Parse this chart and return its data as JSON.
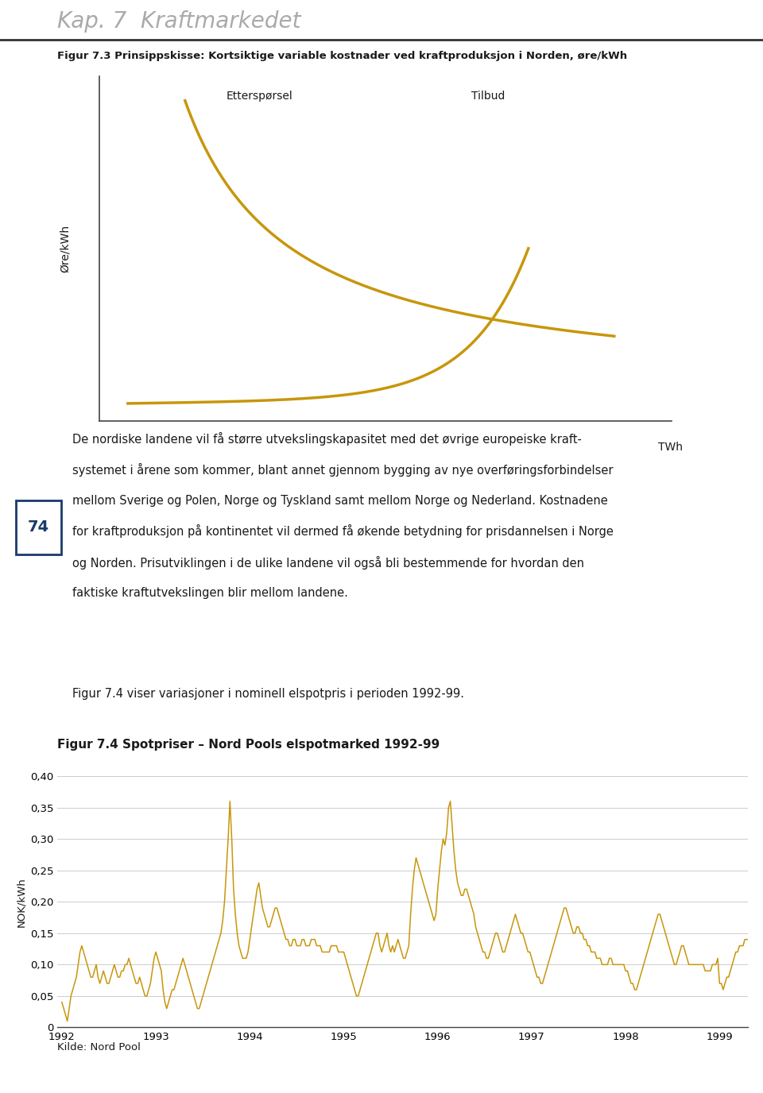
{
  "page_title": "Kap. 7  Kraftmarkedet",
  "fig3_title": "Figur 7.3 Prinsippskisse: Kortsiktige variable kostnader ved kraftproduksjon i Norden, øre/kWh",
  "fig3_xlabel": "TWh",
  "fig3_ylabel": "Øre/kWh",
  "fig3_label_demand": "Etterspørsel",
  "fig3_label_supply": "Tilbud",
  "curve_color": "#C8960C",
  "fig4_title": "Figur 7.4 Spotpriser – Nord Pools elspotmarked 1992-99",
  "fig4_ylabel": "NOK/kWh",
  "fig4_xlabel_note": "Kilde: Nord Pool",
  "fig4_ylim": [
    0,
    0.4
  ],
  "fig4_yticks": [
    0,
    0.05,
    0.1,
    0.15,
    0.2,
    0.25,
    0.3,
    0.35,
    0.4
  ],
  "fig4_ytick_labels": [
    "0",
    "0,05",
    "0,10",
    "0,15",
    "0,20",
    "0,25",
    "0,30",
    "0,35",
    "0,40"
  ],
  "page_number": "74",
  "body_text_lines": [
    "De nordiske landene vil få større utvekslingskapasitet med det øvrige europeiske kraft-",
    "systemet i årene som kommer, blant annet gjennom bygging av nye overføringsforbindelser",
    "mellom Sverige og Polen, Norge og Tyskland samt mellom Norge og Nederland. Kostnadene",
    "for kraftproduksjon på kontinentet vil dermed få økende betydning for prisdannelsen i Norge",
    "og Norden. Prisutviklingen i de ulike landene vil også bli bestemmende for hvordan den",
    "faktiske kraftutvekslingen blir mellom landene."
  ],
  "intro_text": "Figur 7.4 viser variasjoner i nominell elspotpris i perioden 1992-99.",
  "background_color": "#ffffff",
  "text_color": "#1a1a1a",
  "line_color": "#C8960C",
  "prices_1992": [
    0.04,
    0.03,
    0.02,
    0.01,
    0.03,
    0.05,
    0.06,
    0.07,
    0.08,
    0.1,
    0.12,
    0.13,
    0.12,
    0.11,
    0.1,
    0.09,
    0.08,
    0.08,
    0.09,
    0.1,
    0.08,
    0.07,
    0.08,
    0.09,
    0.08,
    0.07,
    0.07,
    0.08,
    0.09,
    0.1,
    0.09,
    0.08,
    0.08,
    0.09,
    0.09,
    0.1,
    0.1,
    0.11,
    0.1,
    0.09,
    0.08,
    0.07,
    0.07,
    0.08,
    0.07,
    0.06,
    0.05,
    0.05,
    0.06,
    0.07,
    0.09,
    0.11
  ],
  "prices_1993": [
    0.12,
    0.11,
    0.1,
    0.09,
    0.06,
    0.04,
    0.03,
    0.04,
    0.05,
    0.06,
    0.06,
    0.07,
    0.08,
    0.09,
    0.1,
    0.11,
    0.1,
    0.09,
    0.08,
    0.07,
    0.06,
    0.05,
    0.04,
    0.03,
    0.03,
    0.04,
    0.05,
    0.06,
    0.07,
    0.08,
    0.09,
    0.1,
    0.11,
    0.12,
    0.13,
    0.14,
    0.15,
    0.17,
    0.2,
    0.25,
    0.3,
    0.36,
    0.3,
    0.22,
    0.18,
    0.15,
    0.13,
    0.12,
    0.11,
    0.11,
    0.11,
    0.12
  ],
  "prices_1994": [
    0.14,
    0.16,
    0.18,
    0.2,
    0.22,
    0.23,
    0.21,
    0.19,
    0.18,
    0.17,
    0.16,
    0.16,
    0.17,
    0.18,
    0.19,
    0.19,
    0.18,
    0.17,
    0.16,
    0.15,
    0.14,
    0.14,
    0.13,
    0.13,
    0.14,
    0.14,
    0.13,
    0.13,
    0.13,
    0.14,
    0.14,
    0.13,
    0.13,
    0.13,
    0.14,
    0.14,
    0.14,
    0.13,
    0.13,
    0.13,
    0.12,
    0.12,
    0.12,
    0.12,
    0.12,
    0.13,
    0.13,
    0.13,
    0.13,
    0.12,
    0.12,
    0.12
  ],
  "prices_1995": [
    0.12,
    0.11,
    0.1,
    0.09,
    0.08,
    0.07,
    0.06,
    0.05,
    0.05,
    0.06,
    0.07,
    0.08,
    0.09,
    0.1,
    0.11,
    0.12,
    0.13,
    0.14,
    0.15,
    0.15,
    0.13,
    0.12,
    0.13,
    0.14,
    0.15,
    0.13,
    0.12,
    0.13,
    0.12,
    0.13,
    0.14,
    0.13,
    0.12,
    0.11,
    0.11,
    0.12,
    0.13,
    0.18,
    0.22,
    0.25,
    0.27,
    0.26,
    0.25,
    0.24,
    0.23,
    0.22,
    0.21,
    0.2,
    0.19,
    0.18,
    0.17,
    0.18
  ],
  "prices_1996": [
    0.22,
    0.25,
    0.28,
    0.3,
    0.29,
    0.31,
    0.35,
    0.36,
    0.32,
    0.28,
    0.25,
    0.23,
    0.22,
    0.21,
    0.21,
    0.22,
    0.22,
    0.21,
    0.2,
    0.19,
    0.18,
    0.16,
    0.15,
    0.14,
    0.13,
    0.12,
    0.12,
    0.11,
    0.11,
    0.12,
    0.13,
    0.14,
    0.15,
    0.15,
    0.14,
    0.13,
    0.12,
    0.12,
    0.13,
    0.14,
    0.15,
    0.16,
    0.17,
    0.18,
    0.17,
    0.16,
    0.15,
    0.15,
    0.14,
    0.13,
    0.12,
    0.12
  ],
  "prices_1997": [
    0.11,
    0.1,
    0.09,
    0.08,
    0.08,
    0.07,
    0.07,
    0.08,
    0.09,
    0.1,
    0.11,
    0.12,
    0.13,
    0.14,
    0.15,
    0.16,
    0.17,
    0.18,
    0.19,
    0.19,
    0.18,
    0.17,
    0.16,
    0.15,
    0.15,
    0.16,
    0.16,
    0.15,
    0.15,
    0.14,
    0.14,
    0.13,
    0.13,
    0.12,
    0.12,
    0.12,
    0.11,
    0.11,
    0.11,
    0.1,
    0.1,
    0.1,
    0.1,
    0.11,
    0.11,
    0.1,
    0.1,
    0.1,
    0.1,
    0.1,
    0.1,
    0.1
  ],
  "prices_1998": [
    0.09,
    0.09,
    0.08,
    0.07,
    0.07,
    0.06,
    0.06,
    0.07,
    0.08,
    0.09,
    0.1,
    0.11,
    0.12,
    0.13,
    0.14,
    0.15,
    0.16,
    0.17,
    0.18,
    0.18,
    0.17,
    0.16,
    0.15,
    0.14,
    0.13,
    0.12,
    0.11,
    0.1,
    0.1,
    0.11,
    0.12,
    0.13,
    0.13,
    0.12,
    0.11,
    0.1,
    0.1,
    0.1,
    0.1,
    0.1,
    0.1,
    0.1,
    0.1,
    0.1,
    0.09,
    0.09,
    0.09,
    0.09,
    0.1,
    0.1,
    0.1,
    0.11
  ],
  "prices_1999": [
    0.07,
    0.07,
    0.06,
    0.07,
    0.08,
    0.08,
    0.09,
    0.1,
    0.11,
    0.12,
    0.12,
    0.13,
    0.13,
    0.13,
    0.14,
    0.14,
    0.14,
    0.15,
    0.14,
    0.14,
    0.13,
    0.13,
    0.13,
    0.13,
    0.13,
    0.13,
    0.13,
    0.13
  ]
}
